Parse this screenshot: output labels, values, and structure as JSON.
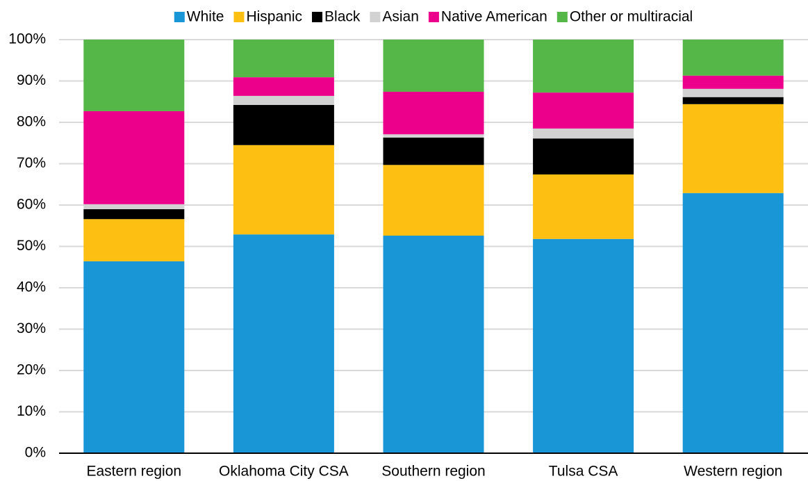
{
  "chart_data": {
    "type": "stacked_bar",
    "categories": [
      "Eastern region",
      "Oklahoma City CSA",
      "Southern region",
      "Tulsa CSA",
      "Western region"
    ],
    "series": [
      {
        "name": "White",
        "color": "#1896d5",
        "values": [
          46.4,
          52.9,
          52.6,
          51.8,
          62.9
        ]
      },
      {
        "name": "Hispanic",
        "color": "#fdbf11",
        "values": [
          10.2,
          21.6,
          17.1,
          15.6,
          21.5
        ]
      },
      {
        "name": "Black",
        "color": "#000000",
        "values": [
          2.4,
          9.7,
          6.6,
          8.7,
          1.7
        ]
      },
      {
        "name": "Asian",
        "color": "#d2d2d2",
        "values": [
          1.2,
          2.2,
          0.8,
          2.4,
          2.0
        ]
      },
      {
        "name": "Native American",
        "color": "#ec008b",
        "values": [
          22.5,
          4.5,
          10.3,
          8.7,
          3.2
        ]
      },
      {
        "name": "Other or multiracial",
        "color": "#55b748",
        "values": [
          17.3,
          9.1,
          12.6,
          12.8,
          8.7
        ]
      }
    ],
    "ylim": [
      0,
      100
    ],
    "yticks": [
      {
        "value": 0,
        "label": "0%"
      },
      {
        "value": 10,
        "label": "10%"
      },
      {
        "value": 20,
        "label": "20%"
      },
      {
        "value": 30,
        "label": "30%"
      },
      {
        "value": 40,
        "label": "40%"
      },
      {
        "value": 50,
        "label": "50%"
      },
      {
        "value": 60,
        "label": "60%"
      },
      {
        "value": 70,
        "label": "70%"
      },
      {
        "value": 80,
        "label": "80%"
      },
      {
        "value": 90,
        "label": "90%"
      },
      {
        "value": 100,
        "label": "100%"
      }
    ],
    "grid": true,
    "legend": "top"
  }
}
